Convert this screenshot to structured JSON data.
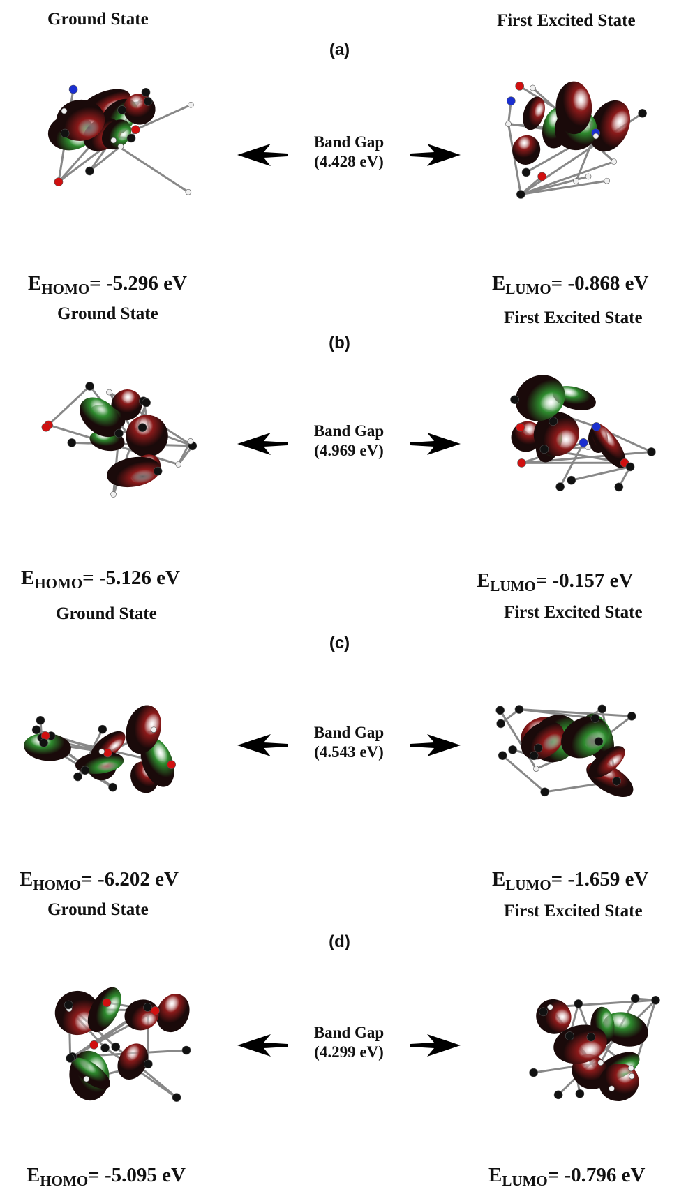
{
  "panels": [
    {
      "label": "(a)",
      "left_title": "Ground State",
      "right_title": "First Excited State",
      "band_gap_label": "Band Gap",
      "band_gap_value": "(4.428 eV)",
      "homo": {
        "prefix": "E",
        "sub": "HOMO",
        "value": "= -5.296 eV"
      },
      "lumo": {
        "prefix": "E",
        "sub": "LUMO",
        "value": "= -0.868 eV"
      }
    },
    {
      "label": "(b)",
      "left_title": "Ground State",
      "right_title": "First Excited State",
      "band_gap_label": "Band Gap",
      "band_gap_value": "(4.969 eV)",
      "homo": {
        "prefix": "E",
        "sub": "HOMO",
        "value": "= -5.126 eV"
      },
      "lumo": {
        "prefix": "E",
        "sub": "LUMO",
        "value": "= -0.157 eV"
      }
    },
    {
      "label": "(c)",
      "left_title": "Ground State",
      "right_title": "First Excited State",
      "band_gap_label": "Band Gap",
      "band_gap_value": "(4.543 eV)",
      "homo": {
        "prefix": "E",
        "sub": "HOMO",
        "value": "= -6.202 eV"
      },
      "lumo": {
        "prefix": "E",
        "sub": "LUMO",
        "value": "= -1.659 eV"
      }
    },
    {
      "label": "(d)",
      "left_title": "Ground State",
      "right_title": "First Excited State",
      "band_gap_label": "Band Gap",
      "band_gap_value": "(4.299 eV)",
      "homo": {
        "prefix": "E",
        "sub": "HOMO",
        "value": "= -5.095 eV"
      },
      "lumo": {
        "prefix": "E",
        "sub": "LUMO",
        "value": "= -0.796 eV"
      }
    }
  ],
  "colors": {
    "lobe_red": "#8b1a1a",
    "lobe_green": "#2e8b2e",
    "carbon": "#111111",
    "oxygen": "#d01010",
    "nitrogen": "#1a2fd0",
    "hydrogen": "#f0f0f0"
  }
}
